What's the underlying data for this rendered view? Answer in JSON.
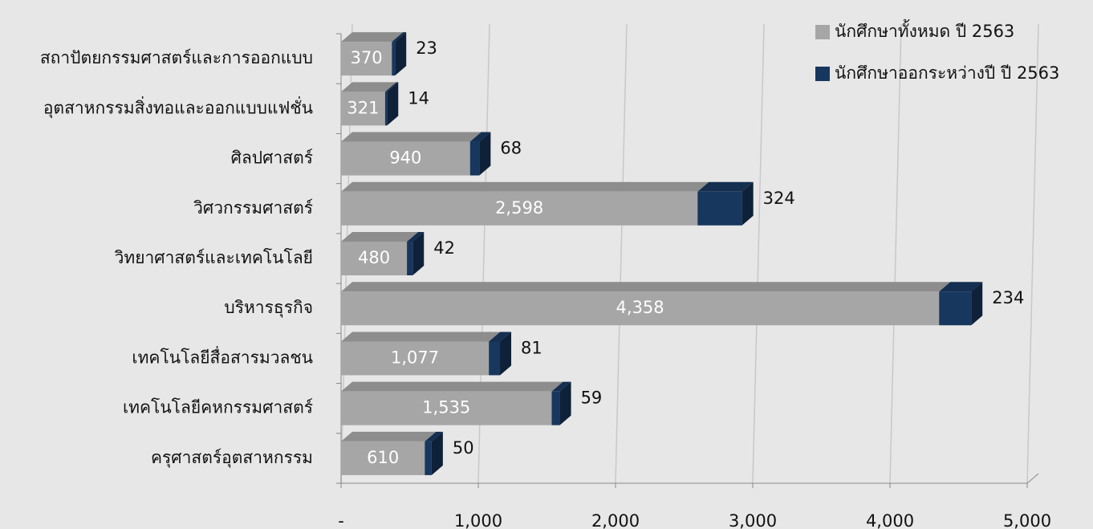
{
  "chart_data": {
    "type": "bar",
    "orientation": "horizontal",
    "stacked": true,
    "categories": [
      "สถาปัตยกรรมศาสตร์และการออกแบบ",
      "อุตสาหกรรมสิ่งทอและออกแบบแฟชั่น",
      "ศิลปศาสตร์",
      "วิศวกรรมศาสตร์",
      "วิทยาศาสตร์และเทคโนโลยี",
      "บริหารธุรกิจ",
      "เทคโนโลยีสื่อสารมวลชน",
      "เทคโนโลยีคหกรรมศาสตร์",
      "ครุศาสตร์อุตสาหกรรม"
    ],
    "series": [
      {
        "name": "นักศึกษาทั้งหมด ปี 2563",
        "color": "#a6a6a6",
        "values": [
          370,
          321,
          940,
          2598,
          480,
          4358,
          1077,
          1535,
          610
        ],
        "value_labels": [
          "370",
          "321",
          "940",
          "2,598",
          "480",
          "4,358",
          "1,077",
          "1,535",
          "610"
        ]
      },
      {
        "name": "นักศึกษาออกระหว่างปี ปี 2563",
        "color": "#17375e",
        "values": [
          23,
          14,
          68,
          324,
          42,
          234,
          81,
          59,
          50
        ]
      }
    ],
    "xlim": [
      0,
      5000
    ],
    "xticks": [
      {
        "value": 0,
        "label": "-"
      },
      {
        "value": 1000,
        "label": "1,000"
      },
      {
        "value": 2000,
        "label": "2,000"
      },
      {
        "value": 3000,
        "label": "3,000"
      },
      {
        "value": 4000,
        "label": "4,000"
      },
      {
        "value": 5000,
        "label": "5,000"
      }
    ],
    "grid": true,
    "legend": "top-right"
  }
}
